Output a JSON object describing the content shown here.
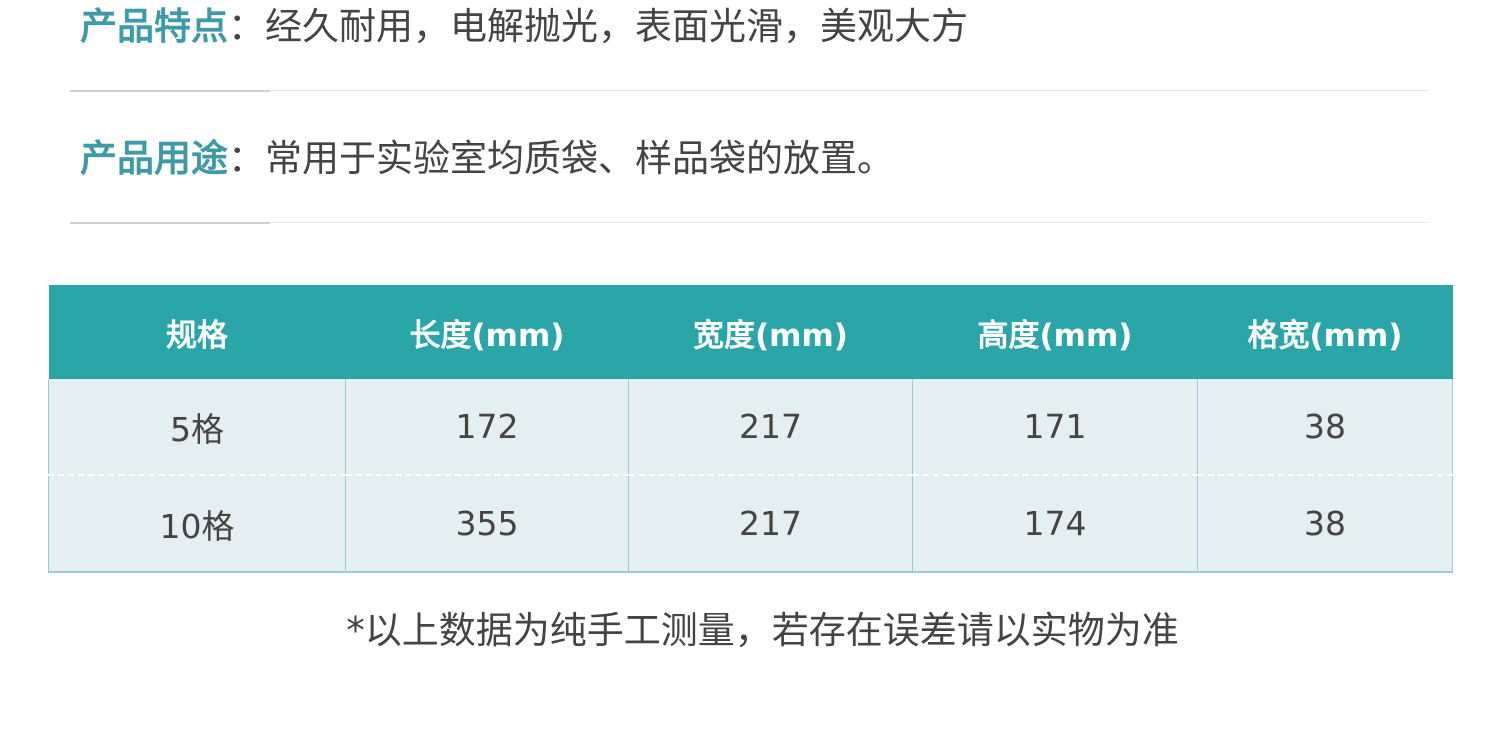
{
  "features": [
    {
      "label": "产品特点",
      "sep": "：",
      "text": "经久耐用，电解抛光，表面光滑，美观大方"
    },
    {
      "label": "产品用途",
      "sep": "：",
      "text": "常用于实验室均质袋、样品袋的放置。"
    }
  ],
  "table": {
    "headers": [
      "规格",
      "长度(mm)",
      "宽度(mm)",
      "高度(mm)",
      "格宽(mm)"
    ],
    "rows": [
      [
        "5格",
        "172",
        "217",
        "171",
        "38"
      ],
      [
        "10格",
        "355",
        "217",
        "174",
        "38"
      ]
    ]
  },
  "note": "*以上数据为纯手工测量，若存在误差请以实物为准",
  "colors": {
    "accent": "#2aa6a8",
    "label": "#3f9aa8",
    "row_bg": "#e4eff2"
  }
}
